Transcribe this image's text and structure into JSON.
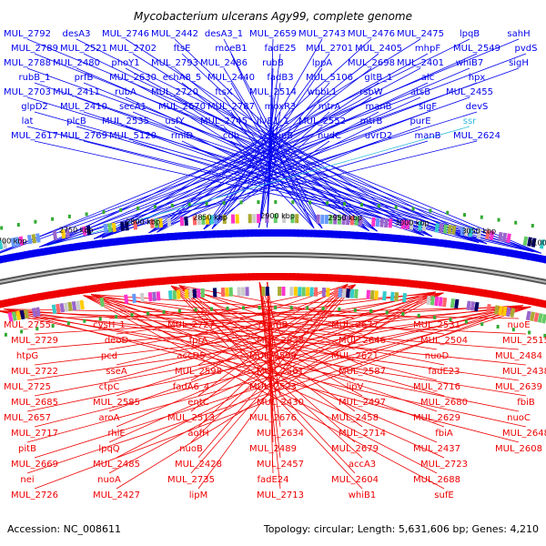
{
  "title": "Mycobacterium ulcerans Agy99, complete genome",
  "footer": {
    "accession": "Accession: NC_008611",
    "summary": "Topology: circular; Length: 5,631,606 bp; Genes: 4,210"
  },
  "colors": {
    "forward": "#0000ee",
    "reverse": "#ee0000",
    "special": "#33bbdd",
    "backbone": "#888888"
  },
  "ticks": [
    "3100 kbp",
    "3050 kbp",
    "3000 kbp",
    "2950 kbp",
    "2900 kbp",
    "2850 kbp",
    "2800 kbp",
    "2750 kbp",
    "2700 kbp"
  ],
  "top_labels": [
    {
      "t": "MUL_2792"
    },
    {
      "t": "MUL_2789"
    },
    {
      "t": "MUL_2788"
    },
    {
      "t": "rubB_1"
    },
    {
      "t": "MUL_2703"
    },
    {
      "t": "glpD2"
    },
    {
      "t": "lat"
    },
    {
      "t": "MUL_2617"
    },
    {
      "t": "desA3"
    },
    {
      "t": "MUL_2521"
    },
    {
      "t": "MUL_2480"
    },
    {
      "t": "prfB"
    },
    {
      "t": "MUL_2411"
    },
    {
      "t": "MUL_2410"
    },
    {
      "t": "plcB"
    },
    {
      "t": "MUL_2769"
    },
    {
      "t": "MUL_2746"
    },
    {
      "t": "MUL_2702"
    },
    {
      "t": "phoY1"
    },
    {
      "t": "MUL_2630"
    },
    {
      "t": "rubA"
    },
    {
      "t": "secA1"
    },
    {
      "t": "MUL_2535"
    },
    {
      "t": "MUL_5120"
    },
    {
      "t": "MUL_2442"
    },
    {
      "t": "ftsE"
    },
    {
      "t": "MUL_2793"
    },
    {
      "t": "echA8_5"
    },
    {
      "t": "MUL_2720"
    },
    {
      "t": "MUL_2670"
    },
    {
      "t": "usfY"
    },
    {
      "t": "rmlD"
    },
    {
      "t": "desA3_1"
    },
    {
      "t": "moeB1"
    },
    {
      "t": "MUL_2486"
    },
    {
      "t": "MUL_2440"
    },
    {
      "t": "ftsX"
    },
    {
      "t": "MUL_2787"
    },
    {
      "t": "MUL_2745"
    },
    {
      "t": "cdh"
    },
    {
      "t": "MUL_2659"
    },
    {
      "t": "fadE25"
    },
    {
      "t": "rubB"
    },
    {
      "t": "fadB3"
    },
    {
      "t": "MUL_2514"
    },
    {
      "t": "moxR3"
    },
    {
      "t": "ilvB1_1"
    },
    {
      "t": "smpB"
    },
    {
      "t": "MUL_2743"
    },
    {
      "t": "MUL_2701"
    },
    {
      "t": "lppA"
    },
    {
      "t": "MUL_5106"
    },
    {
      "t": "wbbL1"
    },
    {
      "t": "mtrA"
    },
    {
      "t": "MUL_2552"
    },
    {
      "t": "nudC"
    },
    {
      "t": "MUL_2476"
    },
    {
      "t": "MUL_2405"
    },
    {
      "t": "MUL_2698"
    },
    {
      "t": "gltB_1"
    },
    {
      "t": "rsbW"
    },
    {
      "t": "manB"
    },
    {
      "t": "mtrB"
    },
    {
      "t": "uvrD2"
    },
    {
      "t": "MUL_2475"
    },
    {
      "t": "mhpF"
    },
    {
      "t": "MUL_2401"
    },
    {
      "t": "alc"
    },
    {
      "t": "atsB"
    },
    {
      "t": "sigF"
    },
    {
      "t": "purE"
    },
    {
      "t": "manB"
    },
    {
      "t": "lpqB"
    },
    {
      "t": "MUL_2549"
    },
    {
      "t": "whiB7"
    },
    {
      "t": "hpx"
    },
    {
      "t": "MUL_2455"
    },
    {
      "t": "devS"
    },
    {
      "t": "ssr"
    },
    {
      "t": "MUL_2624"
    },
    {
      "t": "sahH"
    },
    {
      "t": "pvdS"
    },
    {
      "t": "sigH"
    }
  ],
  "bottom_labels": [
    {
      "t": "MUL_2755"
    },
    {
      "t": "MUL_2729"
    },
    {
      "t": "htpG"
    },
    {
      "t": "MUL_2722"
    },
    {
      "t": "MUL_2725"
    },
    {
      "t": "MUL_2685"
    },
    {
      "t": "MUL_2657"
    },
    {
      "t": "MUL_2717"
    },
    {
      "t": "pitB"
    },
    {
      "t": "MUL_2669"
    },
    {
      "t": "nei"
    },
    {
      "t": "MUL_2726"
    },
    {
      "t": "cysH_1"
    },
    {
      "t": "deoD"
    },
    {
      "t": "pcd"
    },
    {
      "t": "sseA"
    },
    {
      "t": "ctpC"
    },
    {
      "t": "MUL_2585"
    },
    {
      "t": "aroA"
    },
    {
      "t": "rhlE"
    },
    {
      "t": "lpqQ"
    },
    {
      "t": "MUL_2485"
    },
    {
      "t": "nuoA"
    },
    {
      "t": "MUL_2427"
    },
    {
      "t": "MUL_2727"
    },
    {
      "t": "fprA"
    },
    {
      "t": "accD5"
    },
    {
      "t": "MUL_2598"
    },
    {
      "t": "fadA6_4"
    },
    {
      "t": "entC"
    },
    {
      "t": "MUL_2513"
    },
    {
      "t": "aofH"
    },
    {
      "t": "nuoB"
    },
    {
      "t": "MUL_2428"
    },
    {
      "t": "MUL_2735"
    },
    {
      "t": "lipM"
    },
    {
      "t": "pmmB"
    },
    {
      "t": "MUL_2633"
    },
    {
      "t": "MUL_2599"
    },
    {
      "t": "MUL_2561"
    },
    {
      "t": "MUL_2523"
    },
    {
      "t": "MUL_2430"
    },
    {
      "t": "MUL_2676"
    },
    {
      "t": "MUL_2634"
    },
    {
      "t": "MUL_2489"
    },
    {
      "t": "MUL_2457"
    },
    {
      "t": "fadE24"
    },
    {
      "t": "MUL_2713"
    },
    {
      "t": "MUL_2677"
    },
    {
      "t": "MUL_2646"
    },
    {
      "t": "MUL_2621"
    },
    {
      "t": "MUL_2587"
    },
    {
      "t": "lipV"
    },
    {
      "t": "MUL_2497"
    },
    {
      "t": "MUL_2458"
    },
    {
      "t": "MUL_2714"
    },
    {
      "t": "MUL_2679"
    },
    {
      "t": "accA3"
    },
    {
      "t": "MUL_2604"
    },
    {
      "t": "whiB1"
    },
    {
      "t": "MUL_2531"
    },
    {
      "t": "MUL_2504"
    },
    {
      "t": "nuoD"
    },
    {
      "t": "fadE23"
    },
    {
      "t": "MUL_2716"
    },
    {
      "t": "MUL_2680"
    },
    {
      "t": "MUL_2629"
    },
    {
      "t": "fbiA"
    },
    {
      "t": "MUL_2437"
    },
    {
      "t": "MUL_2723"
    },
    {
      "t": "MUL_2688"
    },
    {
      "t": "sufE"
    },
    {
      "t": "nuoE"
    },
    {
      "t": "MUL_2515"
    },
    {
      "t": "MUL_2484"
    },
    {
      "t": "MUL_2438"
    },
    {
      "t": "MUL_2639"
    },
    {
      "t": "fbiB"
    },
    {
      "t": "nuoC"
    },
    {
      "t": "MUL_2648"
    },
    {
      "t": "MUL_2608"
    }
  ]
}
